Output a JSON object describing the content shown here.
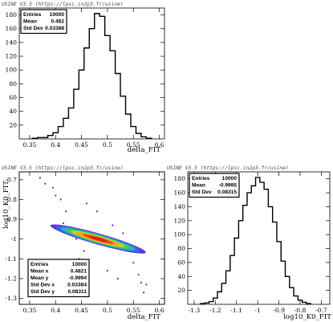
{
  "chart_data": [
    {
      "panel": "top-left",
      "type": "histogram",
      "banner": "USINE V3.5 (https://lpsc.in2p3.fr/usine)",
      "xlabel": "delta_FIT",
      "ylabel": "",
      "xlim": [
        0.33,
        0.61
      ],
      "ylim": [
        0,
        190
      ],
      "xticks": [
        "0.35",
        "0.4",
        "0.45",
        "0.5",
        "0.55",
        "0.6"
      ],
      "yticks": [
        "20",
        "40",
        "60",
        "80",
        "100",
        "120",
        "140",
        "160",
        "180"
      ],
      "stats": [
        {
          "label": "Entries",
          "value": "10000"
        },
        {
          "label": "Mean",
          "value": "0.482"
        },
        {
          "label": "Std Dev",
          "value": "0.03388"
        }
      ],
      "stats_position": "top-left",
      "bins": [
        [
          0.36,
          1
        ],
        [
          0.37,
          2
        ],
        [
          0.38,
          2
        ],
        [
          0.39,
          5
        ],
        [
          0.4,
          9
        ],
        [
          0.41,
          18
        ],
        [
          0.42,
          30
        ],
        [
          0.43,
          45
        ],
        [
          0.44,
          72
        ],
        [
          0.45,
          100
        ],
        [
          0.46,
          132
        ],
        [
          0.47,
          160
        ],
        [
          0.48,
          182
        ],
        [
          0.49,
          178
        ],
        [
          0.5,
          150
        ],
        [
          0.51,
          128
        ],
        [
          0.52,
          95
        ],
        [
          0.53,
          62
        ],
        [
          0.54,
          36
        ],
        [
          0.55,
          18
        ],
        [
          0.56,
          8
        ],
        [
          0.57,
          3
        ],
        [
          0.58,
          1
        ]
      ]
    },
    {
      "panel": "bottom-left",
      "type": "heatmap",
      "banner": "USINE V3.5 (https://lpsc.in2p3.fr/usine)",
      "xlabel": "delta_FIT",
      "ylabel": "log10_K0_FIT",
      "xlim": [
        0.33,
        0.61
      ],
      "ylim": [
        -1.33,
        -0.66
      ],
      "xticks": [
        "0.35",
        "0.4",
        "0.45",
        "0.5",
        "0.55",
        "0.6"
      ],
      "yticks": [
        "-1.3",
        "-1.2",
        "-1.1",
        "-1",
        "-0.9",
        "-0.8",
        "-0.7"
      ],
      "stats": [
        {
          "label": "Entries",
          "value": "10000"
        },
        {
          "label": "Mean x",
          "value": "0.4821"
        },
        {
          "label": "Mean y",
          "value": "-0.9994"
        },
        {
          "label": "Std Dev x",
          "value": "0.03384"
        },
        {
          "label": "Std Dev y",
          "value": "0.08311"
        }
      ],
      "stats_position": "bottom-left",
      "colors": [
        "#5a2ad8",
        "#2f6fe0",
        "#22b8c8",
        "#55c83a",
        "#c8d82a",
        "#f0a020",
        "#e84a14",
        "#d81a0a"
      ],
      "contours": [
        {
          "level": 0,
          "cx": 0.482,
          "cy": -0.9994,
          "a": 0.092,
          "b": 0.028,
          "t": -0.745
        },
        {
          "level": 1,
          "cx": 0.482,
          "cy": -0.9994,
          "a": 0.082,
          "b": 0.025,
          "t": -0.745
        },
        {
          "level": 2,
          "cx": 0.482,
          "cy": -0.9994,
          "a": 0.072,
          "b": 0.022,
          "t": -0.745
        },
        {
          "level": 3,
          "cx": 0.482,
          "cy": -0.9994,
          "a": 0.062,
          "b": 0.019,
          "t": -0.745
        },
        {
          "level": 4,
          "cx": 0.482,
          "cy": -0.9994,
          "a": 0.052,
          "b": 0.016,
          "t": -0.745
        },
        {
          "level": 5,
          "cx": 0.482,
          "cy": -0.9994,
          "a": 0.042,
          "b": 0.013,
          "t": -0.745
        },
        {
          "level": 6,
          "cx": 0.482,
          "cy": -0.9994,
          "a": 0.03,
          "b": 0.01,
          "t": -0.745
        },
        {
          "level": 7,
          "cx": 0.482,
          "cy": -0.9994,
          "a": 0.018,
          "b": 0.006,
          "t": -0.745
        }
      ],
      "outliers": [
        [
          0.37,
          -0.69
        ],
        [
          0.38,
          -0.72
        ],
        [
          0.395,
          -0.74
        ],
        [
          0.4,
          -0.78
        ],
        [
          0.41,
          -0.8
        ],
        [
          0.42,
          -0.86
        ],
        [
          0.415,
          -0.92
        ],
        [
          0.43,
          -0.95
        ],
        [
          0.44,
          -1.0
        ],
        [
          0.455,
          -1.06
        ],
        [
          0.51,
          -0.93
        ],
        [
          0.53,
          -0.97
        ],
        [
          0.535,
          -1.02
        ],
        [
          0.545,
          -1.06
        ],
        [
          0.55,
          -1.12
        ],
        [
          0.56,
          -1.18
        ],
        [
          0.565,
          -1.22
        ],
        [
          0.57,
          -1.27
        ],
        [
          0.48,
          -0.86
        ],
        [
          0.5,
          -1.16
        ],
        [
          0.52,
          -1.2
        ],
        [
          0.46,
          -0.82
        ],
        [
          0.445,
          -1.1
        ],
        [
          0.575,
          -1.23
        ]
      ]
    },
    {
      "panel": "bottom-right",
      "type": "histogram",
      "banner": "USINE V3.5 (https://lpsc.in2p3.fr/usine)",
      "xlabel": "log10_K0_FIT",
      "ylabel": "",
      "xlim": [
        -1.33,
        -0.66
      ],
      "ylim": [
        0,
        190
      ],
      "xticks": [
        "-1.3",
        "-1.2",
        "-1.1",
        "-1",
        "-0.9",
        "-0.8",
        "-0.7"
      ],
      "yticks": [
        "20",
        "40",
        "60",
        "80",
        "100",
        "120",
        "140",
        "160",
        "180"
      ],
      "stats": [
        {
          "label": "Entries",
          "value": "10000"
        },
        {
          "label": "Mean",
          "value": "-0.9995"
        },
        {
          "label": "Std Dev",
          "value": "0.08315"
        }
      ],
      "stats_position": "top-left",
      "bins": [
        [
          -1.26,
          1
        ],
        [
          -1.24,
          2
        ],
        [
          -1.22,
          4
        ],
        [
          -1.2,
          9
        ],
        [
          -1.18,
          18
        ],
        [
          -1.16,
          30
        ],
        [
          -1.14,
          48
        ],
        [
          -1.12,
          70
        ],
        [
          -1.1,
          95
        ],
        [
          -1.08,
          120
        ],
        [
          -1.06,
          142
        ],
        [
          -1.04,
          160
        ],
        [
          -1.02,
          170
        ],
        [
          -1.0,
          182
        ],
        [
          -0.98,
          175
        ],
        [
          -0.96,
          165
        ],
        [
          -0.94,
          140
        ],
        [
          -0.92,
          118
        ],
        [
          -0.9,
          90
        ],
        [
          -0.88,
          62
        ],
        [
          -0.86,
          40
        ],
        [
          -0.84,
          24
        ],
        [
          -0.82,
          12
        ],
        [
          -0.8,
          6
        ],
        [
          -0.78,
          3
        ],
        [
          -0.76,
          1
        ]
      ]
    }
  ]
}
